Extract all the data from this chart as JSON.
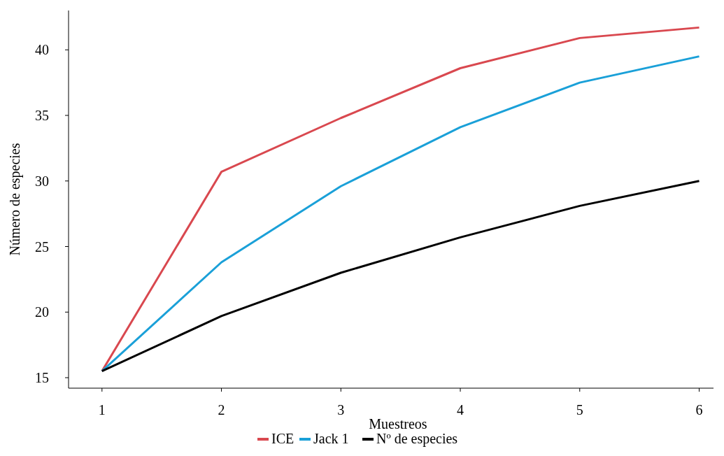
{
  "chart_data": {
    "type": "line",
    "xlabel": "Muestreos",
    "ylabel": "Número de especies",
    "x": [
      1,
      2,
      3,
      4,
      5,
      6
    ],
    "xlim": [
      0.72,
      6.12
    ],
    "xticks": [
      1,
      2,
      3,
      4,
      5,
      6
    ],
    "ylim": [
      14.2,
      43
    ],
    "yticks": [
      15,
      20,
      25,
      30,
      35,
      40
    ],
    "grid": false,
    "legend": "bottom",
    "marker": "none",
    "series": [
      {
        "name": "ICE",
        "color": "#d9484f",
        "values": [
          15.5,
          30.7,
          34.8,
          38.6,
          40.9,
          41.7
        ]
      },
      {
        "name": "Jack 1",
        "color": "#1aa0d8",
        "values": [
          15.5,
          23.8,
          29.6,
          34.1,
          37.5,
          39.5
        ]
      },
      {
        "name": "Nº de especies",
        "color": "#000000",
        "values": [
          15.5,
          19.7,
          23.0,
          25.7,
          28.1,
          30.0
        ]
      }
    ]
  }
}
